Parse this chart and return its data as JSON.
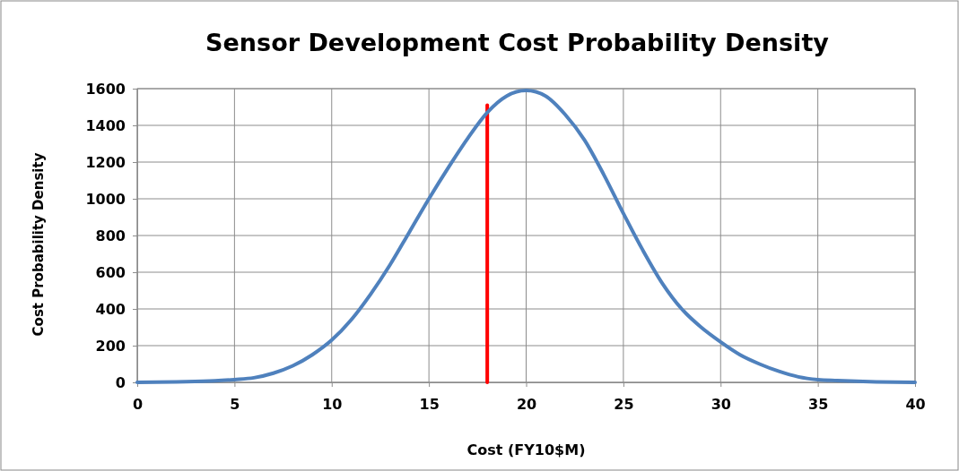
{
  "chart_data": {
    "type": "line",
    "title": "Sensor Development Cost Probability Density",
    "xlabel": "Cost (FY10$M)",
    "ylabel": "Cost Probability Density",
    "xlim": [
      0,
      40
    ],
    "xticks": [
      0,
      5,
      10,
      15,
      20,
      25,
      30,
      35,
      40
    ],
    "ylim": [
      0,
      1600
    ],
    "yticks": [
      0,
      200,
      400,
      600,
      800,
      1000,
      1200,
      1400,
      1600
    ],
    "grid": true,
    "marker": "none",
    "line_style": "solid",
    "series": [
      {
        "color": "#4f81bd",
        "x": [
          0,
          2,
          4,
          5,
          6,
          7,
          8,
          9,
          10,
          11,
          12,
          13,
          14,
          15,
          16,
          17,
          18,
          19,
          20,
          21,
          22,
          23,
          24,
          25,
          26,
          27,
          28,
          29,
          30,
          31,
          32,
          33,
          34,
          35,
          36,
          38,
          40
        ],
        "values": [
          0,
          3,
          8,
          15,
          25,
          50,
          90,
          150,
          230,
          340,
          480,
          640,
          820,
          1000,
          1170,
          1330,
          1470,
          1560,
          1590,
          1560,
          1460,
          1320,
          1130,
          920,
          720,
          540,
          400,
          300,
          220,
          150,
          100,
          60,
          30,
          15,
          10,
          3,
          0
        ]
      },
      {
        "color": "#ff0000",
        "x": [
          18,
          18
        ],
        "values": [
          0,
          1510
        ]
      }
    ]
  }
}
